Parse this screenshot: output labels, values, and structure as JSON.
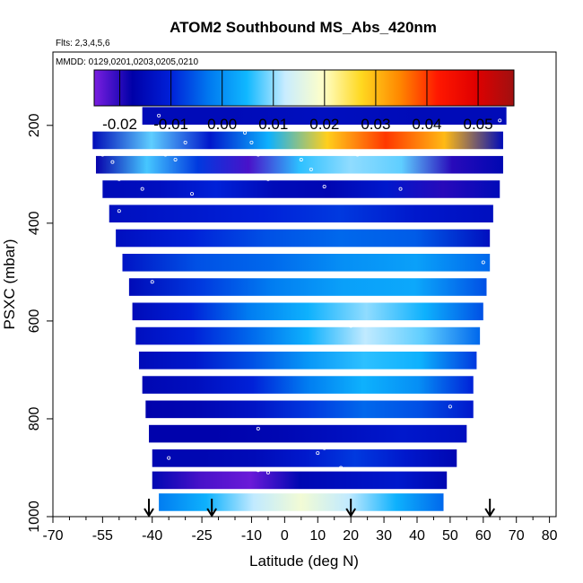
{
  "chart_data": {
    "type": "heatmap",
    "title": "ATOM2 Southbound MS_Abs_420nm",
    "subtitle_flights": "Flts: 2,3,4,5,6",
    "subtitle_dates": "MMDD: 0129,0201,0203,0205,0210",
    "xlabel": "Latitude (deg N)",
    "ylabel": "PSXC (mbar)",
    "xlim": [
      -70,
      82
    ],
    "ylim": [
      1000,
      50
    ],
    "y_reversed": true,
    "grid": false,
    "x_ticks": [
      -70,
      -55,
      -40,
      -25,
      -10,
      0,
      10,
      20,
      30,
      40,
      50,
      60,
      70,
      80
    ],
    "x_tick_labels": [
      "-70",
      "-55",
      "-40",
      "-25",
      "-10",
      "0",
      "10",
      "20",
      "30",
      "40",
      "50",
      "60",
      "70",
      "80"
    ],
    "y_ticks": [
      200,
      400,
      600,
      800,
      1000
    ],
    "y_tick_labels": [
      "200",
      "400",
      "600",
      "800",
      "1000"
    ],
    "colorbar": {
      "placement": "top",
      "range": [
        -0.025,
        0.057
      ],
      "ticks": [
        -0.02,
        -0.01,
        0.0,
        0.01,
        0.02,
        0.03,
        0.04,
        0.05
      ],
      "tick_labels": [
        "-0.02",
        "-0.01",
        "0.00",
        "0.01",
        "0.02",
        "0.03",
        "0.04",
        "0.05"
      ],
      "colors": [
        "#7a1ee0",
        "#0000a8",
        "#0020d8",
        "#0078f0",
        "#10b8ff",
        "#c8ecff",
        "#ffffc8",
        "#ffd820",
        "#ff8800",
        "#ff1800",
        "#e00000",
        "#a01010"
      ]
    },
    "bands": [
      {
        "p": 180,
        "lat": [
          -43,
          67
        ],
        "vals": [
          -0.015,
          -0.015,
          -0.014,
          -0.015,
          -0.015
        ]
      },
      {
        "p": 230,
        "lat": [
          -58,
          66
        ],
        "vals": [
          -0.015,
          0.008,
          -0.012,
          0.004,
          0.028,
          0.04,
          0.03,
          -0.015
        ]
      },
      {
        "p": 280,
        "lat": [
          -57,
          66
        ],
        "vals": [
          -0.018,
          0.007,
          -0.008,
          -0.022,
          0.006,
          0.01,
          0.008,
          -0.02,
          -0.016
        ]
      },
      {
        "p": 330,
        "lat": [
          -55,
          65
        ],
        "vals": [
          -0.015,
          -0.014,
          -0.01,
          -0.015,
          -0.016,
          -0.012,
          -0.02,
          -0.015
        ]
      },
      {
        "p": 380,
        "lat": [
          -53,
          63
        ],
        "vals": [
          -0.014,
          -0.012,
          -0.01,
          -0.008,
          -0.012,
          -0.014
        ]
      },
      {
        "p": 430,
        "lat": [
          -51,
          62
        ],
        "vals": [
          -0.014,
          -0.01,
          -0.006,
          -0.004,
          -0.005,
          -0.014
        ]
      },
      {
        "p": 480,
        "lat": [
          -49,
          62
        ],
        "vals": [
          -0.013,
          -0.006,
          -0.004,
          0.0,
          0.002,
          -0.004
        ]
      },
      {
        "p": 530,
        "lat": [
          -47,
          61
        ],
        "vals": [
          -0.015,
          -0.008,
          -0.002,
          0.002,
          0.003,
          -0.006
        ]
      },
      {
        "p": 580,
        "lat": [
          -46,
          60
        ],
        "vals": [
          -0.015,
          -0.01,
          -0.002,
          0.004,
          0.01,
          0.004,
          -0.006
        ]
      },
      {
        "p": 630,
        "lat": [
          -45,
          59
        ],
        "vals": [
          -0.014,
          -0.01,
          -0.004,
          0.004,
          0.012,
          0.008,
          -0.004
        ]
      },
      {
        "p": 680,
        "lat": [
          -44,
          58
        ],
        "vals": [
          -0.015,
          -0.012,
          -0.006,
          0.001,
          0.006,
          0.004,
          -0.008
        ]
      },
      {
        "p": 730,
        "lat": [
          -43,
          57
        ],
        "vals": [
          -0.016,
          -0.014,
          -0.01,
          -0.002,
          0.004,
          0.0,
          -0.01
        ]
      },
      {
        "p": 780,
        "lat": [
          -42,
          57
        ],
        "vals": [
          -0.017,
          -0.016,
          -0.013,
          -0.008,
          -0.004,
          -0.006,
          -0.012
        ]
      },
      {
        "p": 830,
        "lat": [
          -41,
          55
        ],
        "vals": [
          -0.017,
          -0.017,
          -0.016,
          -0.014,
          -0.012,
          -0.014
        ]
      },
      {
        "p": 880,
        "lat": [
          -40,
          52
        ],
        "vals": [
          -0.016,
          -0.016,
          -0.015,
          -0.012,
          -0.008,
          -0.012,
          -0.016
        ]
      },
      {
        "p": 925,
        "lat": [
          -40,
          49
        ],
        "vals": [
          -0.016,
          -0.022,
          -0.024,
          -0.016,
          -0.014,
          -0.012,
          -0.016
        ]
      },
      {
        "p": 970,
        "lat": [
          -38,
          48
        ],
        "vals": [
          -0.002,
          0.004,
          0.012,
          0.018,
          0.012,
          0.004,
          -0.004
        ]
      }
    ],
    "arrows_lat": [
      -41,
      -22,
      20,
      62
    ],
    "sample_points": [
      [
        -60,
        240
      ],
      [
        -55,
        260
      ],
      [
        -52,
        275
      ],
      [
        -50,
        310
      ],
      [
        -43,
        330
      ],
      [
        -36,
        260
      ],
      [
        -33,
        270
      ],
      [
        -30,
        235
      ],
      [
        -28,
        340
      ],
      [
        -12,
        215
      ],
      [
        -10,
        235
      ],
      [
        -8,
        260
      ],
      [
        -5,
        310
      ],
      [
        5,
        270
      ],
      [
        8,
        290
      ],
      [
        12,
        325
      ],
      [
        22,
        260
      ],
      [
        35,
        330
      ],
      [
        60,
        480
      ],
      [
        65,
        190
      ],
      [
        -38,
        180
      ],
      [
        -50,
        375
      ],
      [
        -40,
        520
      ],
      [
        20,
        610
      ],
      [
        -8,
        820
      ],
      [
        10,
        870
      ],
      [
        12,
        860
      ],
      [
        17,
        900
      ],
      [
        -5,
        910
      ],
      [
        -8,
        905
      ],
      [
        -35,
        880
      ],
      [
        50,
        775
      ]
    ]
  }
}
